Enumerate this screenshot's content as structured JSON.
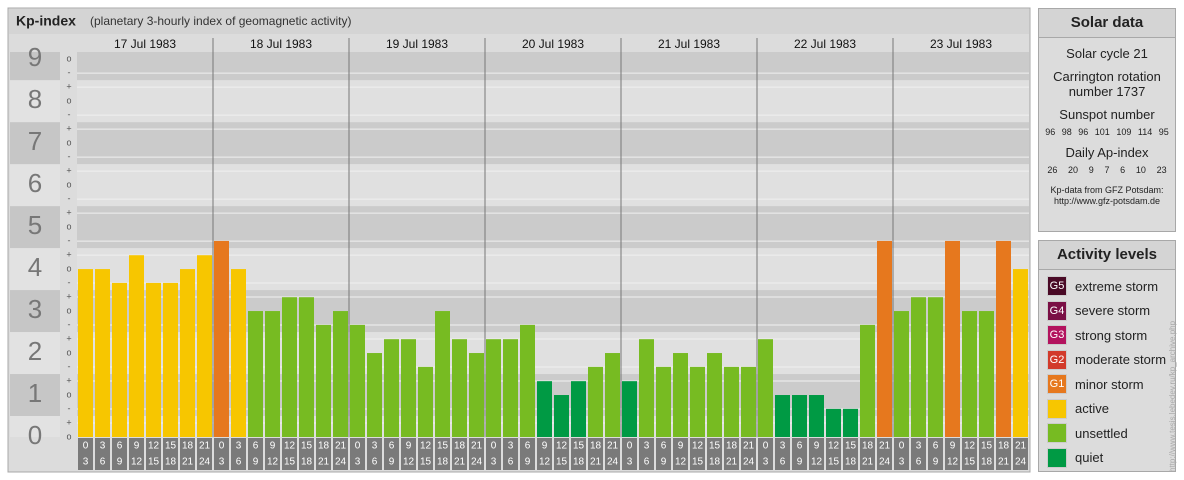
{
  "chart_data": {
    "type": "bar",
    "title": "Kp-index",
    "subtitle": "(planetary 3-hourly index of geomagnetic activity)",
    "days": [
      "17 Jul 1983",
      "18 Jul 1983",
      "19 Jul 1983",
      "20 Jul 1983",
      "21 Jul 1983",
      "22 Jul 1983",
      "23 Jul 1983"
    ],
    "hours": [
      0,
      3,
      6,
      9,
      12,
      15,
      18,
      21,
      24
    ],
    "values": [
      4,
      4,
      3.67,
      4.33,
      3.67,
      3.67,
      4,
      4.33,
      4.67,
      4,
      3,
      3,
      3.33,
      3.33,
      2.67,
      3,
      2.67,
      2,
      2.33,
      2.33,
      1.67,
      3,
      2.33,
      2,
      2.33,
      2.33,
      2.67,
      1.33,
      1,
      1.33,
      1.67,
      2,
      1.33,
      2.33,
      1.67,
      2,
      1.67,
      2,
      1.67,
      1.67,
      2.33,
      1,
      1,
      1,
      0.67,
      0.67,
      2.67,
      4.67,
      3,
      3.33,
      3.33,
      4.67,
      3,
      3,
      4.67,
      4
    ],
    "colors": [
      "#f7c600",
      "#f7c600",
      "#f7c600",
      "#f7c600",
      "#f7c600",
      "#f7c600",
      "#f7c600",
      "#f7c600",
      "#e6781e",
      "#f7c600",
      "#77bb22",
      "#77bb22",
      "#77bb22",
      "#77bb22",
      "#77bb22",
      "#77bb22",
      "#77bb22",
      "#77bb22",
      "#77bb22",
      "#77bb22",
      "#77bb22",
      "#77bb22",
      "#77bb22",
      "#77bb22",
      "#77bb22",
      "#77bb22",
      "#77bb22",
      "#009a44",
      "#009a44",
      "#009a44",
      "#77bb22",
      "#77bb22",
      "#009a44",
      "#77bb22",
      "#77bb22",
      "#77bb22",
      "#77bb22",
      "#77bb22",
      "#77bb22",
      "#77bb22",
      "#77bb22",
      "#009a44",
      "#009a44",
      "#009a44",
      "#009a44",
      "#009a44",
      "#77bb22",
      "#e6781e",
      "#77bb22",
      "#77bb22",
      "#77bb22",
      "#e6781e",
      "#77bb22",
      "#77bb22",
      "#e6781e",
      "#f7c600"
    ],
    "ylim": [
      0,
      9.17
    ],
    "yticks": [
      0,
      1,
      2,
      3,
      4,
      5,
      6,
      7,
      8,
      9
    ],
    "minor_labels": [
      "-",
      "o",
      "+"
    ],
    "grid": true
  },
  "solar_data": {
    "title": "Solar data",
    "cycle": "Solar cycle 21",
    "carrington": "Carrington rotation number 1737",
    "sunspot_title": "Sunspot number",
    "sunspot": [
      96,
      98,
      96,
      101,
      109,
      114,
      95
    ],
    "ap_title": "Daily Ap-index",
    "ap": [
      26,
      20,
      9,
      7,
      6,
      10,
      23
    ],
    "source": "Kp-data from GFZ Potsdam:",
    "source_url": "http://www.gfz-potsdam.de"
  },
  "activity_levels": {
    "title": "Activity levels",
    "levels": [
      {
        "code": "G5",
        "name": "extreme storm",
        "color": "#4a0a26"
      },
      {
        "code": "G4",
        "name": "severe storm",
        "color": "#7a0f45"
      },
      {
        "code": "G3",
        "name": "strong storm",
        "color": "#b3135e"
      },
      {
        "code": "G2",
        "name": "moderate storm",
        "color": "#d23a2a"
      },
      {
        "code": "G1",
        "name": "minor storm",
        "color": "#e6781e"
      },
      {
        "name": "active",
        "color": "#f7c600"
      },
      {
        "name": "unsettled",
        "color": "#77bb22"
      },
      {
        "name": "quiet",
        "color": "#009a44"
      }
    ]
  },
  "credit": "http://www.tesis.lebedev.ru/kp_archive.php"
}
